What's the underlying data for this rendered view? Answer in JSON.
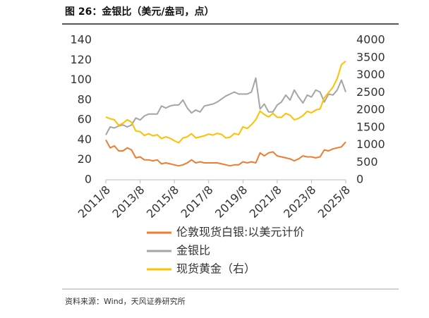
{
  "chart_data": {
    "type": "line",
    "title": "图 26：金银比（美元/盎司，点）",
    "source": "资料来源：Wind，天风证券研究所",
    "x": [
      "2011/8",
      "2011/11",
      "2012/2",
      "2012/5",
      "2012/8",
      "2012/11",
      "2013/2",
      "2013/5",
      "2013/8",
      "2013/11",
      "2014/2",
      "2014/5",
      "2014/8",
      "2014/11",
      "2015/2",
      "2015/5",
      "2015/8",
      "2015/11",
      "2016/2",
      "2016/5",
      "2016/8",
      "2016/11",
      "2017/2",
      "2017/5",
      "2017/8",
      "2017/11",
      "2018/2",
      "2018/5",
      "2018/8",
      "2018/11",
      "2019/2",
      "2019/5",
      "2019/8",
      "2019/11",
      "2020/2",
      "2020/5",
      "2020/8",
      "2020/11",
      "2021/2",
      "2021/5",
      "2021/8",
      "2021/11",
      "2022/2",
      "2022/5",
      "2022/8",
      "2022/11",
      "2023/2",
      "2023/5",
      "2023/8",
      "2023/11",
      "2024/2",
      "2024/5",
      "2024/8",
      "2024/11",
      "2025/2",
      "2025/5",
      "2025/8"
    ],
    "xticks": [
      "2011/8",
      "2013/8",
      "2015/8",
      "2017/8",
      "2019/8",
      "2021/8",
      "2023/8",
      "2025/8"
    ],
    "ylim": [
      0,
      140
    ],
    "yticks": [
      0,
      20,
      40,
      60,
      80,
      100,
      120,
      140
    ],
    "y2lim": [
      0,
      4000
    ],
    "y2ticks": [
      0,
      500,
      1000,
      1500,
      2000,
      2500,
      3000,
      3500,
      4000
    ],
    "series": [
      {
        "name": "伦敦现货白银:以美元计价",
        "color": "#ed7d31",
        "values": [
          40,
          32,
          34,
          29,
          29,
          32,
          30,
          22,
          23,
          20,
          20,
          19,
          20,
          16,
          17,
          16,
          15,
          14,
          15,
          17,
          20,
          17,
          18,
          17,
          17,
          17,
          17,
          16,
          15,
          14,
          15,
          15,
          18,
          17,
          18,
          17,
          27,
          24,
          27,
          28,
          24,
          23,
          22,
          21,
          19,
          21,
          24,
          23,
          23,
          22,
          23,
          30,
          29,
          31,
          32,
          33,
          38
        ]
      },
      {
        "name": "金银比",
        "color": "#a5a5a5",
        "values": [
          45,
          53,
          52,
          54,
          55,
          53,
          55,
          62,
          60,
          64,
          66,
          66,
          66,
          74,
          72,
          74,
          75,
          75,
          80,
          72,
          67,
          70,
          68,
          74,
          75,
          76,
          78,
          81,
          84,
          86,
          88,
          86,
          86,
          86,
          88,
          102,
          71,
          76,
          68,
          68,
          75,
          78,
          85,
          80,
          90,
          83,
          77,
          85,
          83,
          90,
          88,
          78,
          86,
          85,
          90,
          100,
          88
        ]
      },
      {
        "name": "现货黄金（右）",
        "color": "#ffc000",
        "axis": "y2",
        "values": [
          1800,
          1750,
          1720,
          1560,
          1620,
          1720,
          1650,
          1400,
          1380,
          1270,
          1320,
          1260,
          1290,
          1180,
          1230,
          1190,
          1120,
          1060,
          1200,
          1230,
          1320,
          1200,
          1230,
          1260,
          1310,
          1280,
          1330,
          1300,
          1200,
          1220,
          1330,
          1290,
          1520,
          1470,
          1580,
          1720,
          1970,
          1870,
          1800,
          1900,
          1790,
          1790,
          1900,
          1850,
          1720,
          1760,
          1840,
          1960,
          1920,
          2000,
          2030,
          2350,
          2500,
          2650,
          2900,
          3300,
          3400
        ]
      }
    ]
  }
}
